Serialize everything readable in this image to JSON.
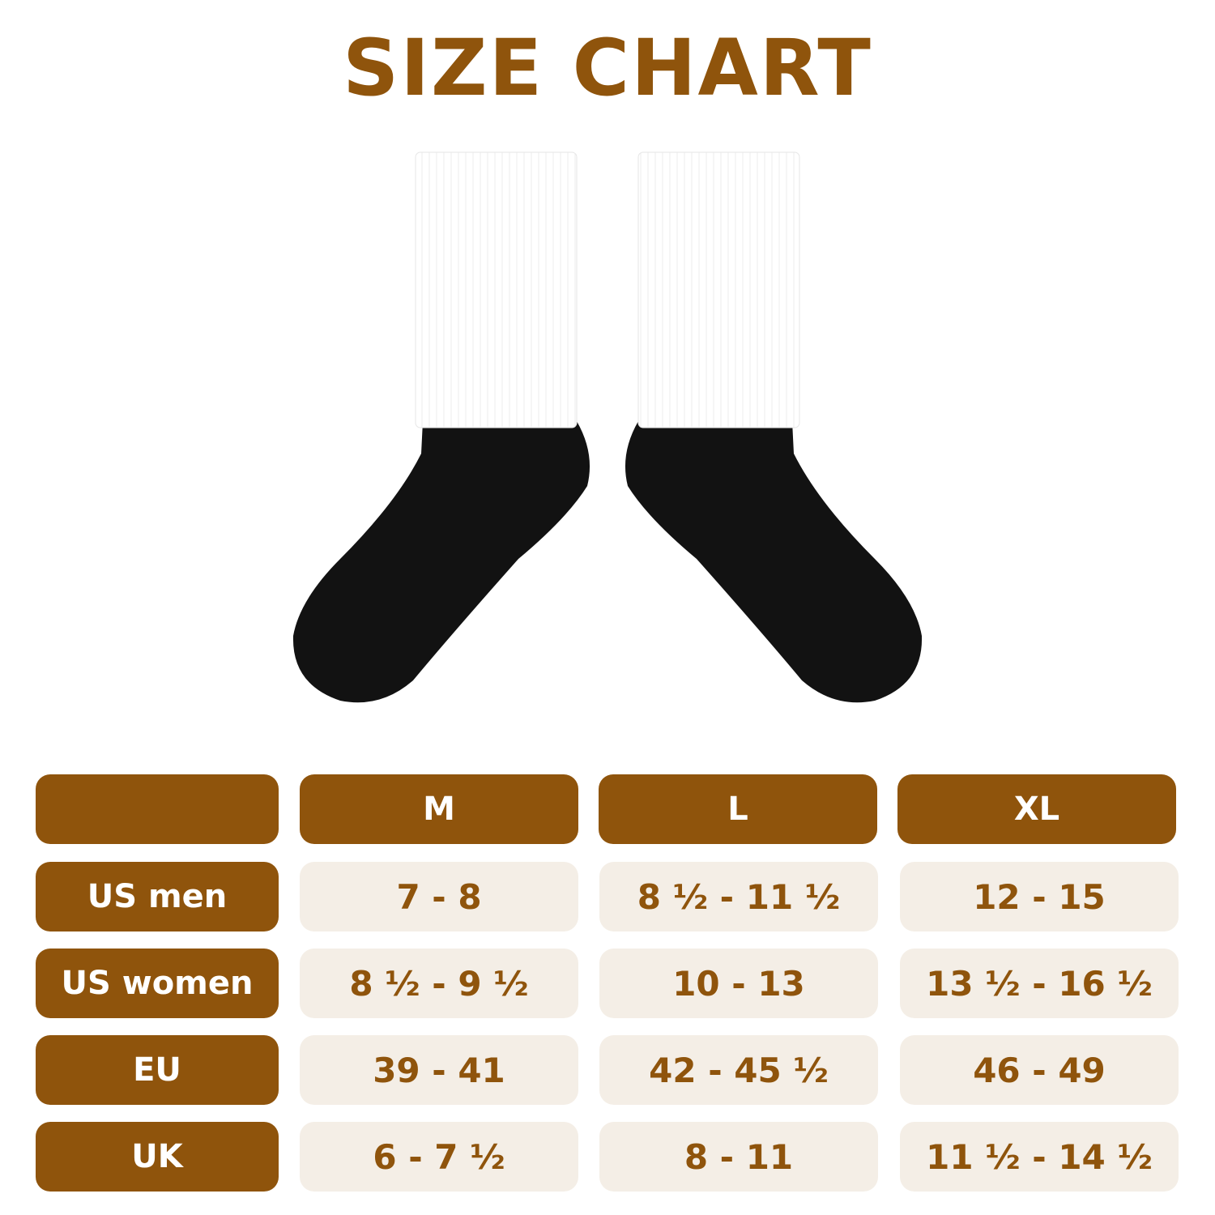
{
  "title": "SIZE CHART",
  "colors": {
    "brand_brown": "#8F540C",
    "cell_cream": "#F4EEE6"
  },
  "table": {
    "header": [
      "",
      "M",
      "L",
      "XL"
    ],
    "rows": [
      {
        "label": "US men",
        "values": [
          "7 - 8",
          "8 ½ - 11 ½",
          "12 - 15"
        ]
      },
      {
        "label": "US women",
        "values": [
          "8 ½ - 9 ½",
          "10 - 13",
          "13 ½ - 16 ½"
        ]
      },
      {
        "label": "EU",
        "values": [
          "39 - 41",
          "42 - 45 ½",
          "46 - 49"
        ]
      },
      {
        "label": "UK",
        "values": [
          "6 - 7 ½",
          "8 - 11",
          "11 ½ - 14 ½"
        ]
      }
    ]
  }
}
